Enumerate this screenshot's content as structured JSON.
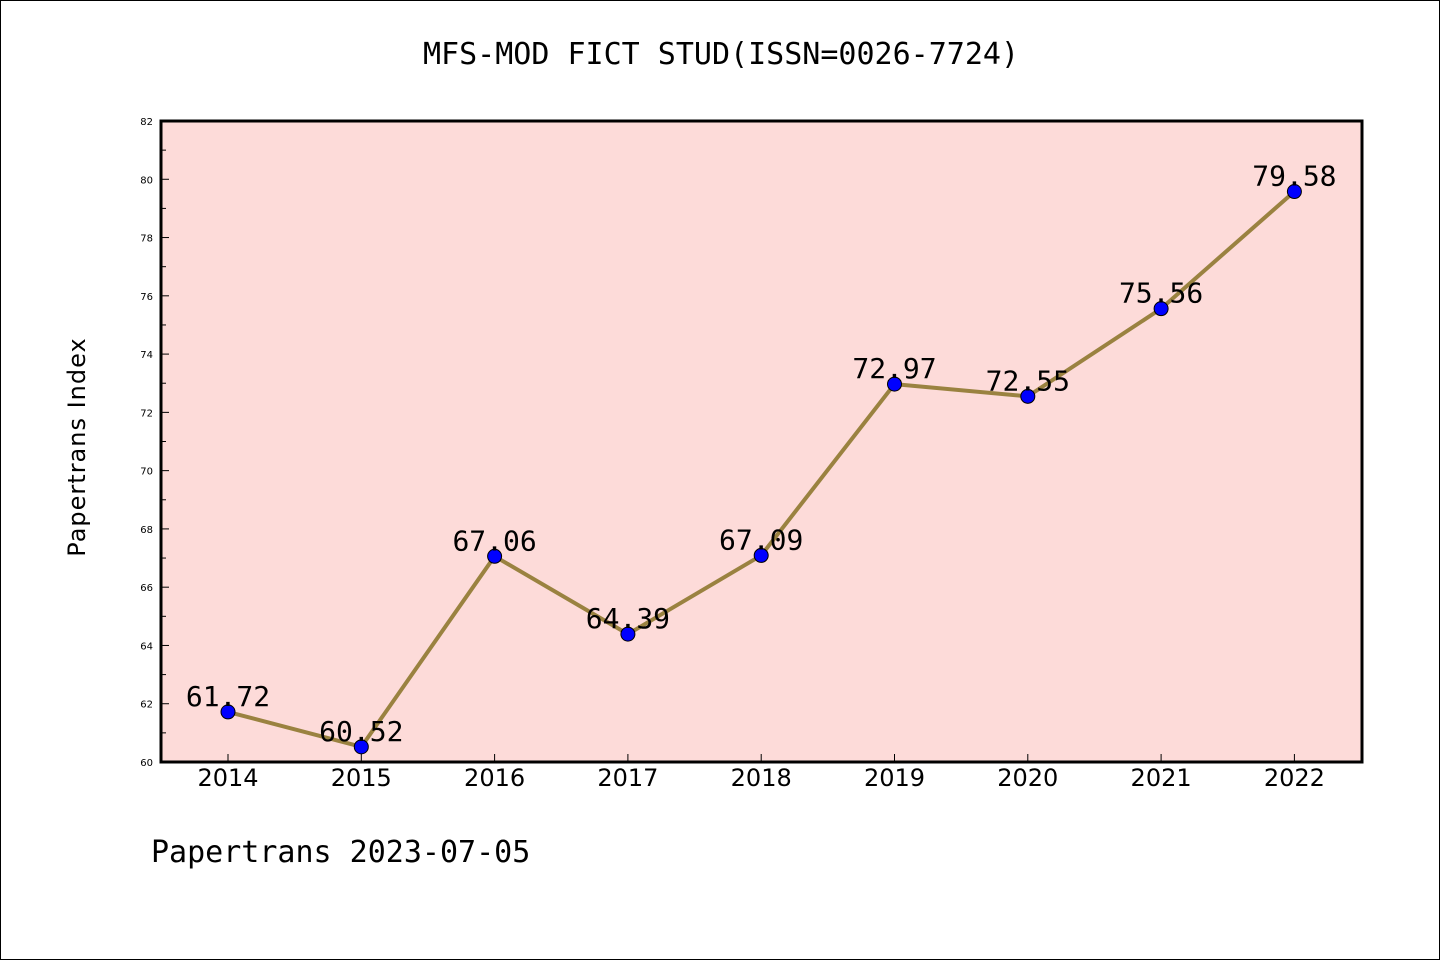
{
  "chart_data": {
    "type": "line",
    "title": "MFS-MOD FICT STUD(ISSN=0026-7724)",
    "ylabel": "Papertrans Index",
    "xlabel": "",
    "categories": [
      "2014",
      "2015",
      "2016",
      "2017",
      "2018",
      "2019",
      "2020",
      "2021",
      "2022"
    ],
    "values": [
      61.72,
      60.52,
      67.06,
      64.39,
      67.09,
      72.97,
      72.55,
      75.56,
      79.58
    ],
    "data_labels": [
      "61.72",
      "60.52",
      "67.06",
      "64.39",
      "67.09",
      "72.97",
      "72.55",
      "75.56",
      "79.58"
    ],
    "ylim": [
      60,
      82
    ],
    "yticks": [
      60,
      62,
      64,
      66,
      68,
      70,
      72,
      74,
      76,
      78,
      80,
      82
    ],
    "grid": false,
    "colors": {
      "plot_background": "#fddbd9",
      "line": "#9a8240",
      "marker": "#0000ff"
    }
  },
  "footer": "Papertrans 2023-07-05"
}
